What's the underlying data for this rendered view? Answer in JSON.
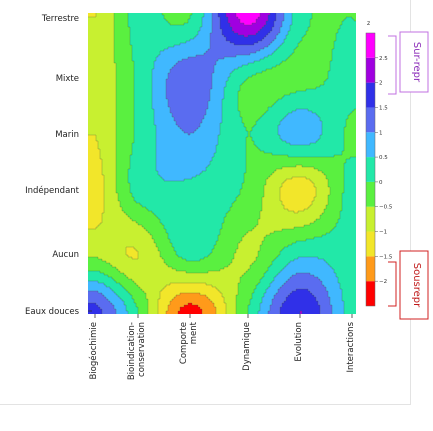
{
  "chart_data": {
    "type": "contour",
    "title": "",
    "xlabel": "",
    "ylabel": "",
    "x_categories": [
      "Biogéochimie",
      "Bioindication-conservation",
      "Comportement",
      "Dynamique",
      "Evolution",
      "Interactions"
    ],
    "x_tick_lines": [
      [
        "Biogéochimie"
      ],
      [
        "Bioindication-",
        "conservation"
      ],
      [
        "Comporte",
        "ment"
      ],
      [
        "Dynamique"
      ],
      [
        "Evolution"
      ],
      [
        "Interactions"
      ]
    ],
    "y_categories": [
      "Eaux douces",
      "Aucun",
      "Indépendant",
      "Marin",
      "Mixte",
      "Terrestre"
    ],
    "colorbar": {
      "title": "z",
      "ticks": [
        {
          "value": 2.5,
          "label": "2.5"
        },
        {
          "value": 2,
          "label": "2"
        },
        {
          "value": 1.5,
          "label": "1.5"
        },
        {
          "value": 1,
          "label": "1"
        },
        {
          "value": 0.5,
          "label": "0.5"
        },
        {
          "value": 0,
          "label": "0"
        },
        {
          "value": -0.5,
          "label": "−0.5"
        },
        {
          "value": -1,
          "label": "−1"
        },
        {
          "value": -1.5,
          "label": "−1.5"
        },
        {
          "value": -2,
          "label": "−2"
        }
      ],
      "levels": [
        -2.5,
        -2,
        -1.5,
        -1,
        -0.5,
        0,
        0.5,
        1,
        1.5,
        2,
        2.5,
        3
      ],
      "colors": [
        "#ff0000",
        "#ff9a1a",
        "#f2e62a",
        "#c8f030",
        "#5af040",
        "#22e8a8",
        "#40b8ff",
        "#5a6cf0",
        "#3030e8",
        "#a000e0",
        "#ff00ff"
      ],
      "range": [
        -2.5,
        3
      ]
    },
    "z_grid_note_free": true,
    "z": [
      [
        -1.0,
        0.2,
        0.0,
        2.7,
        0.2,
        0.0
      ],
      [
        -0.9,
        0.1,
        1.4,
        0.0,
        -0.2,
        0.2
      ],
      [
        -1.0,
        0.1,
        1.0,
        0.0,
        0.8,
        -0.1
      ],
      [
        -1.2,
        0.2,
        0.4,
        -0.1,
        -1.3,
        0.2
      ],
      [
        -0.6,
        -1.0,
        0.2,
        -0.6,
        0.4,
        0.2
      ],
      [
        1.7,
        0.0,
        -2.2,
        0.0,
        2.0,
        0.3
      ]
    ]
  },
  "annotations": {
    "over": "Sur-repr",
    "under": "Sousrepr"
  },
  "colors": {
    "over_box": "#c070e0",
    "under_box": "#d02020",
    "contour_line": "#4a5a40"
  }
}
